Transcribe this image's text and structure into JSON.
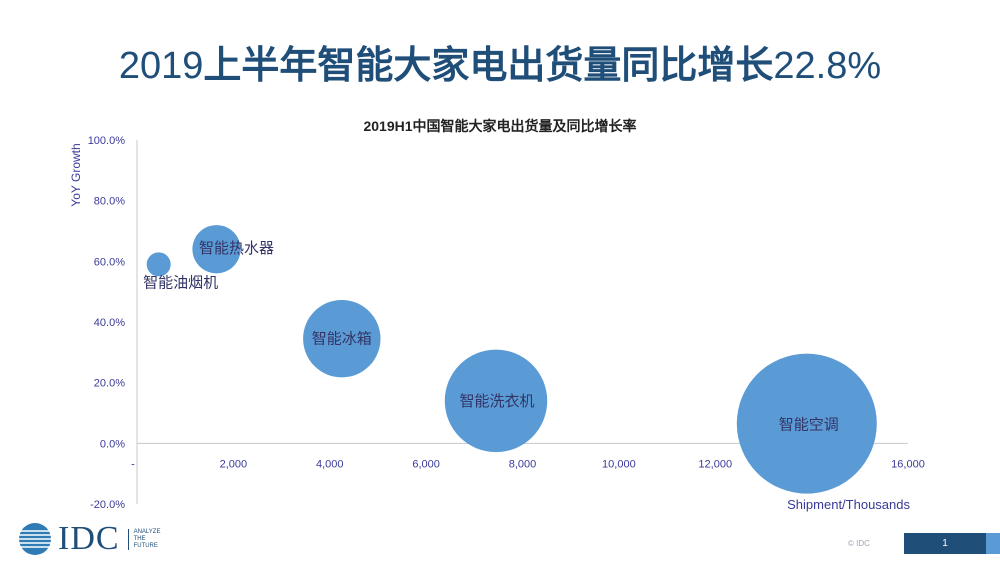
{
  "slide": {
    "title_year": "2019",
    "title_text": "上半年智能大家电出货量同比增长",
    "title_rate": "22.8%"
  },
  "chart_data": {
    "type": "scatter",
    "title": "2019H1中国智能大家电出货量及同比增长率",
    "xlabel": "Shipment/Thousands",
    "ylabel": "YoY Growth",
    "xlim": [
      0,
      16000
    ],
    "ylim": [
      -20,
      100
    ],
    "x_ticks": [
      "-",
      "2,000",
      "4,000",
      "6,000",
      "8,000",
      "10,000",
      "12,000",
      "14,000",
      "16,000"
    ],
    "y_ticks": [
      "100.0%",
      "80.0%",
      "60.0%",
      "40.0%",
      "20.0%",
      "0.0%",
      "-20.0%"
    ],
    "bubble_color": "#5b9bd5",
    "points": [
      {
        "label": "智能油烟机",
        "x": 450,
        "y": 59,
        "size": 250
      },
      {
        "label": "智能热水器",
        "x": 1650,
        "y": 64,
        "size": 1650
      },
      {
        "label": "智能冰箱",
        "x": 4250,
        "y": 34.5,
        "size": 4250
      },
      {
        "label": "智能洗衣机",
        "x": 7450,
        "y": 14,
        "size": 7450
      },
      {
        "label": "智能空调",
        "x": 13900,
        "y": 6.5,
        "size": 13900
      }
    ]
  },
  "footer": {
    "logo": "IDC",
    "tagline": [
      "ANALYZE",
      "THE",
      "FUTURE"
    ],
    "copyright": "© IDC",
    "page_number": "1"
  }
}
